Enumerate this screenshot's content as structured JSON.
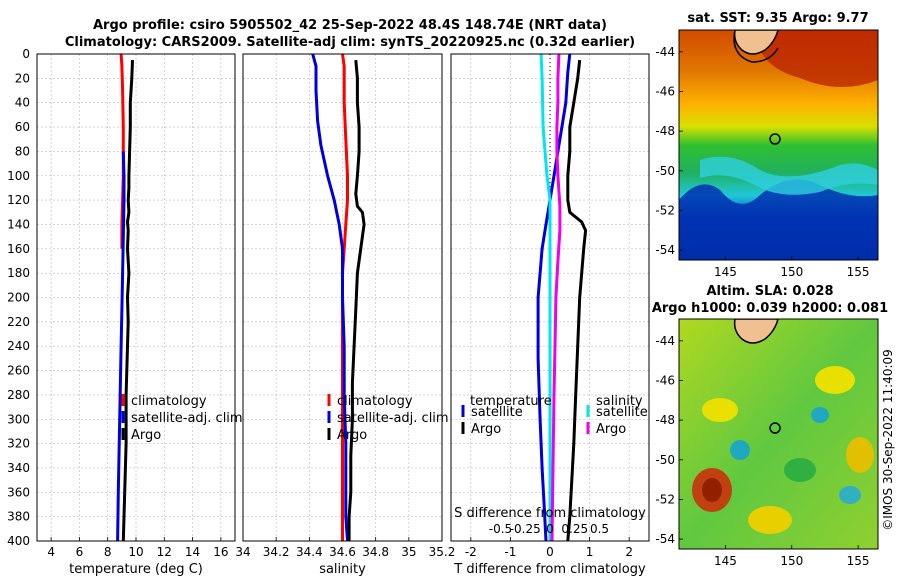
{
  "header": {
    "title_line1": "Argo profile: csiro 5905502_42 25-Sep-2022 48.4S 148.74E (NRT data)",
    "title_line2": "Climatology: CARS2009. Satellite-adj clim: synTS_20220925.nc (0.32d earlier)"
  },
  "watermark": "©IMOS 30-Sep-2022 11:40:09",
  "colors": {
    "climatology": "#ff0000",
    "satellite": "#0000dd",
    "argo": "#000000",
    "sat_salinity": "#00e5ee",
    "argo_salinity": "#ee00ee",
    "grid": "#b8b8b8"
  },
  "chart_data": [
    {
      "id": "temperature",
      "type": "line",
      "xlabel": "temperature (deg C)",
      "ylabel": "",
      "xlim": [
        3,
        17
      ],
      "ylim": [
        0,
        400
      ],
      "xticks": [
        4,
        6,
        8,
        10,
        12,
        14,
        16
      ],
      "yticks": [
        0,
        20,
        40,
        60,
        80,
        100,
        120,
        140,
        160,
        180,
        200,
        220,
        240,
        260,
        280,
        300,
        320,
        340,
        360,
        380,
        400
      ],
      "y_reversed": true,
      "legend": {
        "position": "lower-right",
        "entries": [
          "climatology",
          "satellite-adj. clim",
          "Argo"
        ]
      },
      "series": [
        {
          "name": "climatology",
          "color": "#ff0000",
          "x": [
            8.95,
            9.0,
            9.05,
            9.1,
            9.1,
            9.1,
            9.05,
            9.0,
            9.0
          ],
          "y": [
            0,
            10,
            30,
            60,
            80,
            100,
            120,
            140,
            160
          ]
        },
        {
          "name": "satellite-adj. clim",
          "color": "#0000dd",
          "x": [
            9.1,
            9.15,
            9.15,
            9.1,
            9.05,
            9.0,
            8.95,
            8.9,
            8.85,
            8.8,
            8.75,
            8.7
          ],
          "y": [
            80,
            100,
            120,
            150,
            180,
            210,
            240,
            270,
            300,
            330,
            360,
            400
          ]
        },
        {
          "name": "Argo",
          "color": "#000000",
          "x": [
            9.75,
            9.7,
            9.6,
            9.6,
            9.55,
            9.5,
            9.5,
            9.45,
            9.5,
            9.4,
            9.45,
            9.4,
            9.5,
            9.4,
            9.45,
            9.4,
            9.35,
            9.3,
            9.3,
            9.3,
            9.25,
            9.2,
            9.15,
            9.1
          ],
          "y": [
            5,
            20,
            40,
            60,
            80,
            100,
            110,
            120,
            130,
            138,
            145,
            160,
            180,
            200,
            220,
            240,
            260,
            280,
            300,
            320,
            340,
            360,
            380,
            400
          ]
        }
      ]
    },
    {
      "id": "salinity",
      "type": "line",
      "xlabel": "salinity",
      "ylabel": "",
      "xlim": [
        34.0,
        35.2
      ],
      "ylim": [
        0,
        400
      ],
      "xticks": [
        34.0,
        34.2,
        34.4,
        34.6,
        34.8,
        35.0,
        35.2
      ],
      "xtick_labels": [
        "34",
        "34.2",
        "34.4",
        "34.6",
        "34.8",
        "35",
        "35.2"
      ],
      "yticks": [
        0,
        20,
        40,
        60,
        80,
        100,
        120,
        140,
        160,
        180,
        200,
        220,
        240,
        260,
        280,
        300,
        320,
        340,
        360,
        380,
        400
      ],
      "y_reversed": true,
      "legend": {
        "position": "lower-right",
        "entries": [
          "climatology",
          "satellite-adj. clim",
          "Argo"
        ]
      },
      "series": [
        {
          "name": "climatology",
          "color": "#ff0000",
          "x": [
            34.6,
            34.61,
            34.61,
            34.62,
            34.63,
            34.63,
            34.62,
            34.61,
            34.6,
            34.6,
            34.6,
            34.6,
            34.6,
            34.6,
            34.6,
            34.6,
            34.6,
            34.6,
            34.6
          ],
          "y": [
            0,
            10,
            40,
            70,
            100,
            120,
            140,
            160,
            180,
            200,
            220,
            240,
            260,
            280,
            300,
            320,
            340,
            360,
            400
          ]
        },
        {
          "name": "satellite-adj. clim",
          "color": "#0000dd",
          "x": [
            34.42,
            34.44,
            34.44,
            34.45,
            34.47,
            34.51,
            34.55,
            34.58,
            34.6,
            34.6,
            34.6,
            34.61,
            34.61,
            34.62,
            34.62,
            34.62,
            34.63
          ],
          "y": [
            0,
            10,
            30,
            55,
            75,
            100,
            120,
            140,
            160,
            180,
            200,
            240,
            280,
            320,
            360,
            380,
            400
          ]
        },
        {
          "name": "Argo",
          "color": "#000000",
          "x": [
            34.68,
            34.69,
            34.69,
            34.7,
            34.7,
            34.69,
            34.68,
            34.69,
            34.72,
            34.73,
            34.72,
            34.69,
            34.68,
            34.67,
            34.66,
            34.66,
            34.65,
            34.65,
            34.64,
            34.64
          ],
          "y": [
            5,
            20,
            40,
            60,
            80,
            100,
            115,
            125,
            130,
            140,
            150,
            180,
            210,
            240,
            270,
            300,
            330,
            360,
            380,
            400
          ]
        }
      ]
    },
    {
      "id": "difference",
      "type": "line",
      "xlabel": "T difference from climatology",
      "x2label": "S difference from climatology",
      "xlim": [
        -2.5,
        2.5
      ],
      "x2lim": [
        -1.0,
        1.0
      ],
      "ylim": [
        0,
        400
      ],
      "xticks": [
        -2,
        -1,
        0,
        1,
        2
      ],
      "x2ticks": [
        -0.5,
        -0.25,
        0,
        0.25,
        0.5
      ],
      "x2tick_labels": [
        "-0.5",
        "-0.25",
        "0",
        "0.25",
        "0.5"
      ],
      "y_reversed": true,
      "zero_line": true,
      "legend": {
        "position": "lower-center",
        "temperature_heading": "temperature",
        "salinity_heading": "salinity",
        "entries": [
          "satellite",
          "Argo",
          "satellite",
          "Argo"
        ]
      },
      "series": [
        {
          "name": "T satellite",
          "color": "#0000dd",
          "axis": "T",
          "x": [
            0.5,
            0.45,
            0.4,
            0.3,
            0.2,
            0.1,
            0.0,
            -0.1,
            -0.2,
            -0.25,
            -0.3,
            -0.3,
            -0.25,
            -0.2,
            -0.15,
            -0.1
          ],
          "y": [
            0,
            15,
            40,
            60,
            80,
            100,
            120,
            140,
            160,
            180,
            200,
            250,
            300,
            340,
            370,
            400
          ]
        },
        {
          "name": "T Argo",
          "color": "#000000",
          "axis": "T",
          "x": [
            0.75,
            0.7,
            0.6,
            0.5,
            0.5,
            0.45,
            0.45,
            0.5,
            0.8,
            0.9,
            0.85,
            0.8,
            0.75,
            0.7,
            0.65,
            0.6,
            0.55,
            0.5,
            0.45
          ],
          "y": [
            5,
            20,
            40,
            60,
            80,
            100,
            120,
            130,
            138,
            145,
            160,
            180,
            200,
            240,
            280,
            320,
            350,
            380,
            400
          ]
        },
        {
          "name": "S satellite",
          "color": "#00e5ee",
          "axis": "S",
          "x": [
            -0.09,
            -0.08,
            -0.07,
            -0.05,
            -0.03,
            0.0,
            0.0,
            0.0,
            0.0,
            0.0
          ],
          "y": [
            0,
            20,
            60,
            80,
            100,
            120,
            160,
            200,
            300,
            400
          ]
        },
        {
          "name": "S Argo",
          "color": "#ee00ee",
          "axis": "S",
          "x": [
            0.09,
            0.08,
            0.08,
            0.07,
            0.07,
            0.08,
            0.1,
            0.1,
            0.08,
            0.06,
            0.05,
            0.04,
            0.03,
            0.02
          ],
          "y": [
            0,
            20,
            40,
            60,
            80,
            100,
            125,
            145,
            170,
            200,
            240,
            280,
            340,
            400
          ]
        }
      ]
    },
    {
      "id": "sst_map",
      "type": "heatmap",
      "title": "sat. SST: 9.35 Argo: 9.77",
      "xlim": [
        141.5,
        156.5
      ],
      "ylim": [
        -54.5,
        -42.9
      ],
      "xticks": [
        145,
        150,
        155
      ],
      "yticks": [
        -44,
        -46,
        -48,
        -50,
        -52,
        -54
      ],
      "marker": {
        "lon": 148.74,
        "lat": -48.4
      }
    },
    {
      "id": "sla_map",
      "type": "heatmap",
      "title_line1": "Altim. SLA: 0.028",
      "title_line2": "Argo h1000: 0.039 h2000: 0.081",
      "xlim": [
        141.5,
        156.5
      ],
      "ylim": [
        -54.5,
        -42.9
      ],
      "xticks": [
        145,
        150,
        155
      ],
      "yticks": [
        -44,
        -46,
        -48,
        -50,
        -52,
        -54
      ],
      "marker": {
        "lon": 148.74,
        "lat": -48.4
      }
    }
  ]
}
